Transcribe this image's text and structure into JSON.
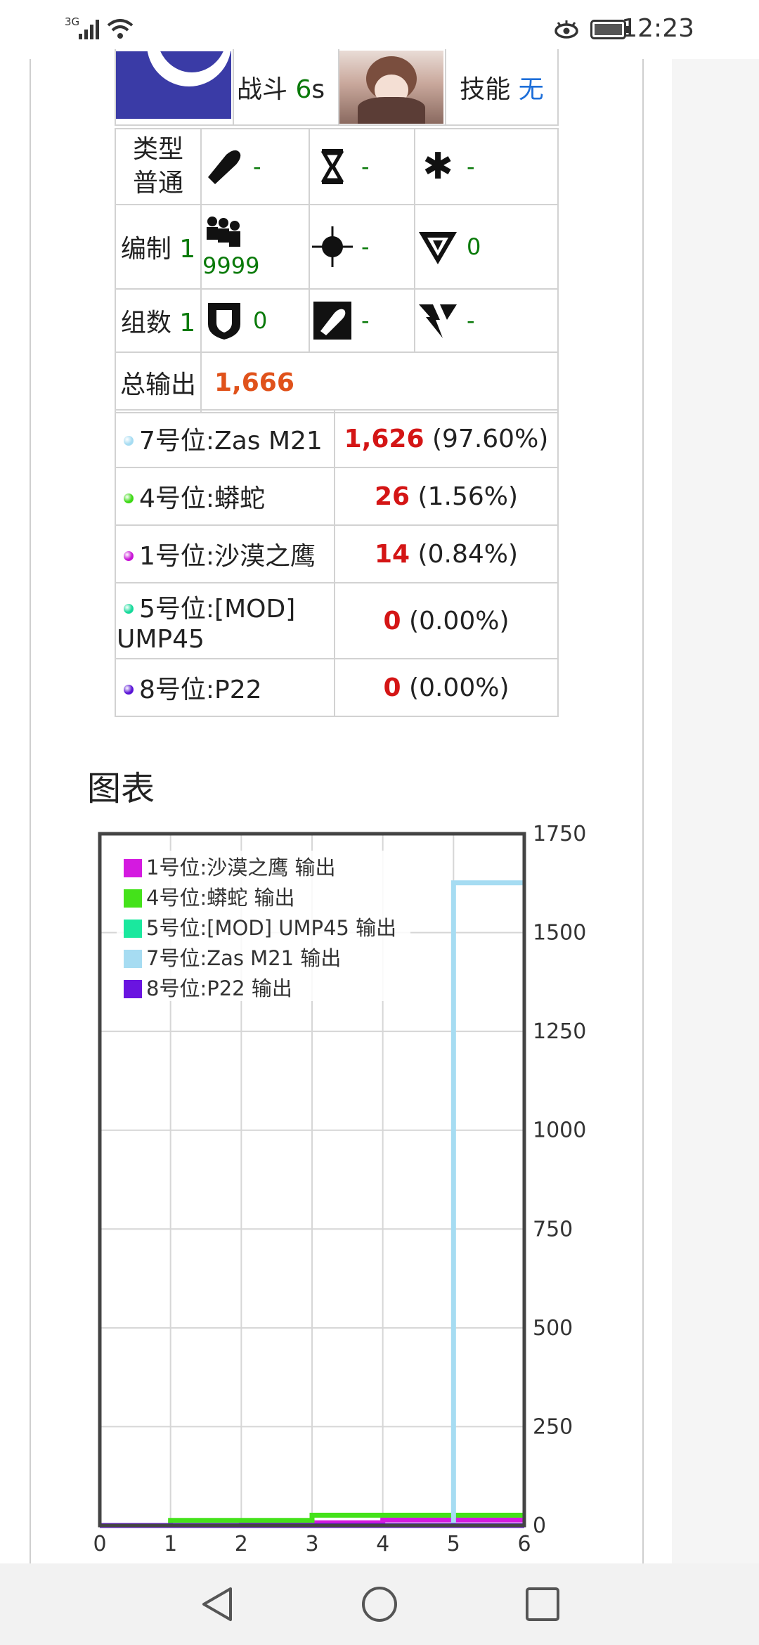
{
  "status_bar": {
    "network": "3G",
    "time": "12:23"
  },
  "info": {
    "battle_label": "战斗",
    "battle_value": "6",
    "battle_unit": "s",
    "skill_label": "技能",
    "skill_value": "无",
    "type_label": "类型",
    "type_value": "普通",
    "formation_label": "编制",
    "formation_value": "1",
    "groups_label": "组数",
    "groups_value": "1",
    "stats": [
      {
        "icon": "bullet-icon",
        "value": "-"
      },
      {
        "icon": "hourglass-icon",
        "value": "-"
      },
      {
        "icon": "asterisk-icon",
        "value": "-"
      },
      {
        "icon": "squad-icon",
        "value": "9999"
      },
      {
        "icon": "crosshair-icon",
        "value": "-"
      },
      {
        "icon": "dodge-icon",
        "value": "0"
      },
      {
        "icon": "armor-icon",
        "value": "0"
      },
      {
        "icon": "pierce-icon",
        "value": "-"
      },
      {
        "icon": "crit-icon",
        "value": "-"
      }
    ],
    "total_label": "总输出",
    "total_value": "1,666"
  },
  "ranking": [
    {
      "label": "7号位:Zas M21",
      "value": "1,626",
      "pct": "(97.60%)",
      "color": "#a6dcf2"
    },
    {
      "label": "4号位:蟒蛇",
      "value": "26",
      "pct": "(1.56%)",
      "color": "#3ed916"
    },
    {
      "label": "1号位:沙漠之鹰",
      "value": "14",
      "pct": "(0.84%)",
      "color": "#c814d6"
    },
    {
      "label": "5号位:[MOD] UMP45",
      "value": "0",
      "pct": "(0.00%)",
      "color": "#16d99a"
    },
    {
      "label": "8号位:P22",
      "value": "0",
      "pct": "(0.00%)",
      "color": "#5a14d6"
    }
  ],
  "section_title": "图表",
  "chart_data": {
    "type": "line",
    "step": true,
    "x": [
      0,
      1,
      2,
      3,
      4,
      5,
      6
    ],
    "ylim": [
      0,
      1750
    ],
    "xlim": [
      0,
      6
    ],
    "y_ticks": [
      "0",
      "250",
      "500",
      "750",
      "1000",
      "1250",
      "1500",
      "1750"
    ],
    "x_ticks": [
      "0",
      "1",
      "2",
      "3",
      "4",
      "5",
      "6"
    ],
    "grid": true,
    "y_axis_side": "right",
    "legend_position": "top-left",
    "series": [
      {
        "name": "1号位:沙漠之鹰 输出",
        "color": "#d41ae0",
        "values": [
          0,
          0,
          7,
          7,
          14,
          14,
          14
        ]
      },
      {
        "name": "4号位:蟒蛇 输出",
        "color": "#44e21a",
        "values": [
          0,
          13,
          13,
          26,
          26,
          26,
          26
        ]
      },
      {
        "name": "5号位:[MOD] UMP45 输出",
        "color": "#1ae89e",
        "values": [
          0,
          0,
          0,
          0,
          0,
          0,
          0
        ]
      },
      {
        "name": "7号位:Zas M21 输出",
        "color": "#a6dcf2",
        "values": [
          0,
          0,
          0,
          0,
          0,
          1626,
          1626
        ]
      },
      {
        "name": "8号位:P22 输出",
        "color": "#6a14e0",
        "values": [
          0,
          0,
          0,
          0,
          0,
          0,
          0
        ]
      }
    ]
  }
}
